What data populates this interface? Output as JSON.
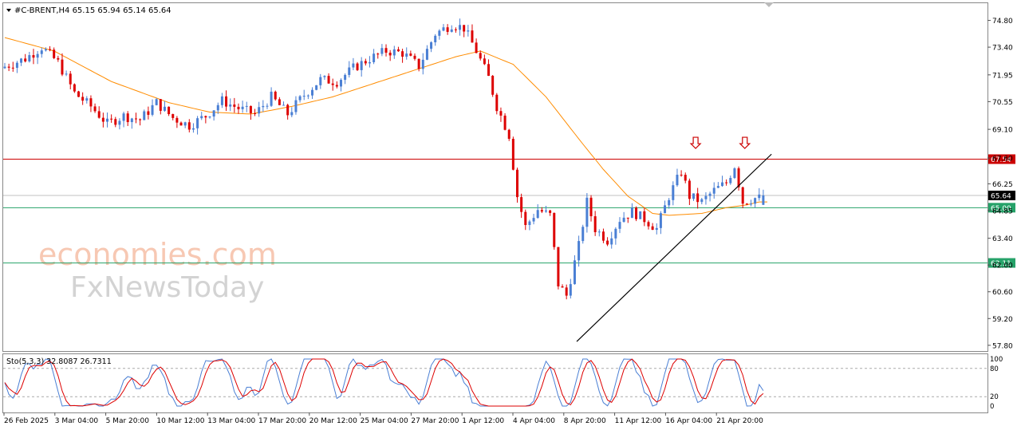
{
  "header": {
    "symbol_line": "#C-BRENT,H4  65.15 65.94 65.14 65.64",
    "indicator_line": "Sto(5,3,3) 32.8087 26.7311"
  },
  "watermark": {
    "line1": "economies.com",
    "line2": "FxNewsToday"
  },
  "chart_data": [
    {
      "type": "candlestick",
      "symbol": "#C-BRENT",
      "timeframe": "H4",
      "ohlc_current": {
        "open": 65.15,
        "high": 65.94,
        "low": 65.14,
        "close": 65.64
      },
      "ylim": [
        57.5,
        75.7
      ],
      "y_ticks": [
        57.8,
        59.2,
        60.6,
        62.0,
        63.4,
        64.85,
        66.25,
        67.6,
        69.1,
        70.55,
        71.95,
        73.4,
        74.8
      ],
      "y_tick_labels": [
        "57.80",
        "59.20",
        "60.60",
        "62.00",
        "63.40",
        "64.85",
        "66.25",
        "67.60",
        "69.10",
        "70.55",
        "71.95",
        "73.40",
        "74.80"
      ],
      "x_tick_labels": [
        "26 Feb 2025",
        "3 Mar 04:00",
        "5 Mar 20:00",
        "10 Mar 12:00",
        "13 Mar 04:00",
        "17 Mar 20:00",
        "20 Mar 12:00",
        "25 Mar 04:00",
        "27 Mar 20:00",
        "1 Apr 12:00",
        "4 Apr 04:00",
        "8 Apr 20:00",
        "11 Apr 12:00",
        "16 Apr 04:00",
        "21 Apr 20:00"
      ],
      "close_path": [
        [
          0,
          72.3
        ],
        [
          6,
          72.8
        ],
        [
          10,
          73.4
        ],
        [
          14,
          72.6
        ],
        [
          18,
          71.0
        ],
        [
          22,
          70.3
        ],
        [
          26,
          69.4
        ],
        [
          30,
          69.8
        ],
        [
          34,
          69.6
        ],
        [
          38,
          70.5
        ],
        [
          42,
          69.7
        ],
        [
          46,
          69.3
        ],
        [
          50,
          69.8
        ],
        [
          54,
          70.6
        ],
        [
          58,
          70.2
        ],
        [
          62,
          69.9
        ],
        [
          66,
          70.8
        ],
        [
          70,
          69.9
        ],
        [
          74,
          70.9
        ],
        [
          78,
          71.7
        ],
        [
          82,
          71.6
        ],
        [
          86,
          72.3
        ],
        [
          90,
          72.8
        ],
        [
          94,
          73.2
        ],
        [
          98,
          73.1
        ],
        [
          102,
          72.4
        ],
        [
          106,
          74.1
        ],
        [
          110,
          74.6
        ],
        [
          113,
          74.4
        ],
        [
          116,
          73.2
        ],
        [
          119,
          71.8
        ],
        [
          121,
          70.3
        ],
        [
          124,
          68.8
        ],
        [
          126,
          65.6
        ],
        [
          128,
          64.0
        ],
        [
          131,
          64.9
        ],
        [
          134,
          64.6
        ],
        [
          136,
          61.0
        ],
        [
          138,
          60.4
        ],
        [
          141,
          63.0
        ],
        [
          143,
          65.3
        ],
        [
          145,
          63.9
        ],
        [
          148,
          63.3
        ],
        [
          151,
          64.4
        ],
        [
          154,
          64.8
        ],
        [
          157,
          64.4
        ],
        [
          160,
          63.9
        ],
        [
          163,
          65.6
        ],
        [
          166,
          66.9
        ],
        [
          168,
          65.6
        ],
        [
          171,
          65.3
        ],
        [
          174,
          65.9
        ],
        [
          177,
          66.3
        ],
        [
          179,
          67.2
        ],
        [
          181,
          65.3
        ],
        [
          184,
          65.5
        ]
      ],
      "sma": {
        "color": "#ff8c00",
        "path": [
          [
            0,
            73.9
          ],
          [
            12,
            73.2
          ],
          [
            26,
            71.6
          ],
          [
            40,
            70.5
          ],
          [
            50,
            70.0
          ],
          [
            60,
            69.9
          ],
          [
            70,
            70.3
          ],
          [
            80,
            70.8
          ],
          [
            90,
            71.5
          ],
          [
            100,
            72.2
          ],
          [
            110,
            72.9
          ],
          [
            116,
            73.2
          ],
          [
            124,
            72.5
          ],
          [
            132,
            70.8
          ],
          [
            140,
            68.6
          ],
          [
            146,
            67.0
          ],
          [
            152,
            65.6
          ],
          [
            158,
            64.7
          ],
          [
            162,
            64.6
          ],
          [
            170,
            64.7
          ],
          [
            176,
            65.0
          ],
          [
            181,
            65.15
          ],
          [
            184,
            65.3
          ]
        ]
      },
      "horizontal_levels": [
        {
          "value": 67.54,
          "label": "67.54",
          "color": "#cc0000"
        },
        {
          "value": 65.0,
          "label": "65.00",
          "color": "#26a269"
        },
        {
          "value": 62.11,
          "label": "62.11",
          "color": "#26a269"
        }
      ],
      "current_price": {
        "value": 65.64,
        "label": "65.64"
      },
      "trendline": {
        "from": [
          139.5,
          58.0
        ],
        "to": [
          187,
          67.8
        ],
        "color": "#000000"
      },
      "annotations": [
        {
          "type": "down-arrow",
          "x": 168.5,
          "y": 68.1,
          "color": "#cc0000"
        },
        {
          "type": "down-arrow",
          "x": 180.5,
          "y": 68.1,
          "color": "#cc0000"
        }
      ],
      "candle_colors": {
        "up": "#4a7fd4",
        "down": "#dd0000"
      }
    },
    {
      "type": "line",
      "name": "Sto(5,3,3)",
      "values_current": {
        "main": 32.8087,
        "signal": 26.7311
      },
      "ylim": [
        0,
        100
      ],
      "levels": [
        80,
        20
      ],
      "y_tick_labels": [
        "100",
        "80",
        "20",
        "0"
      ],
      "series_colors": {
        "main": "#4a7fd4",
        "signal": "#dd0000"
      }
    }
  ]
}
